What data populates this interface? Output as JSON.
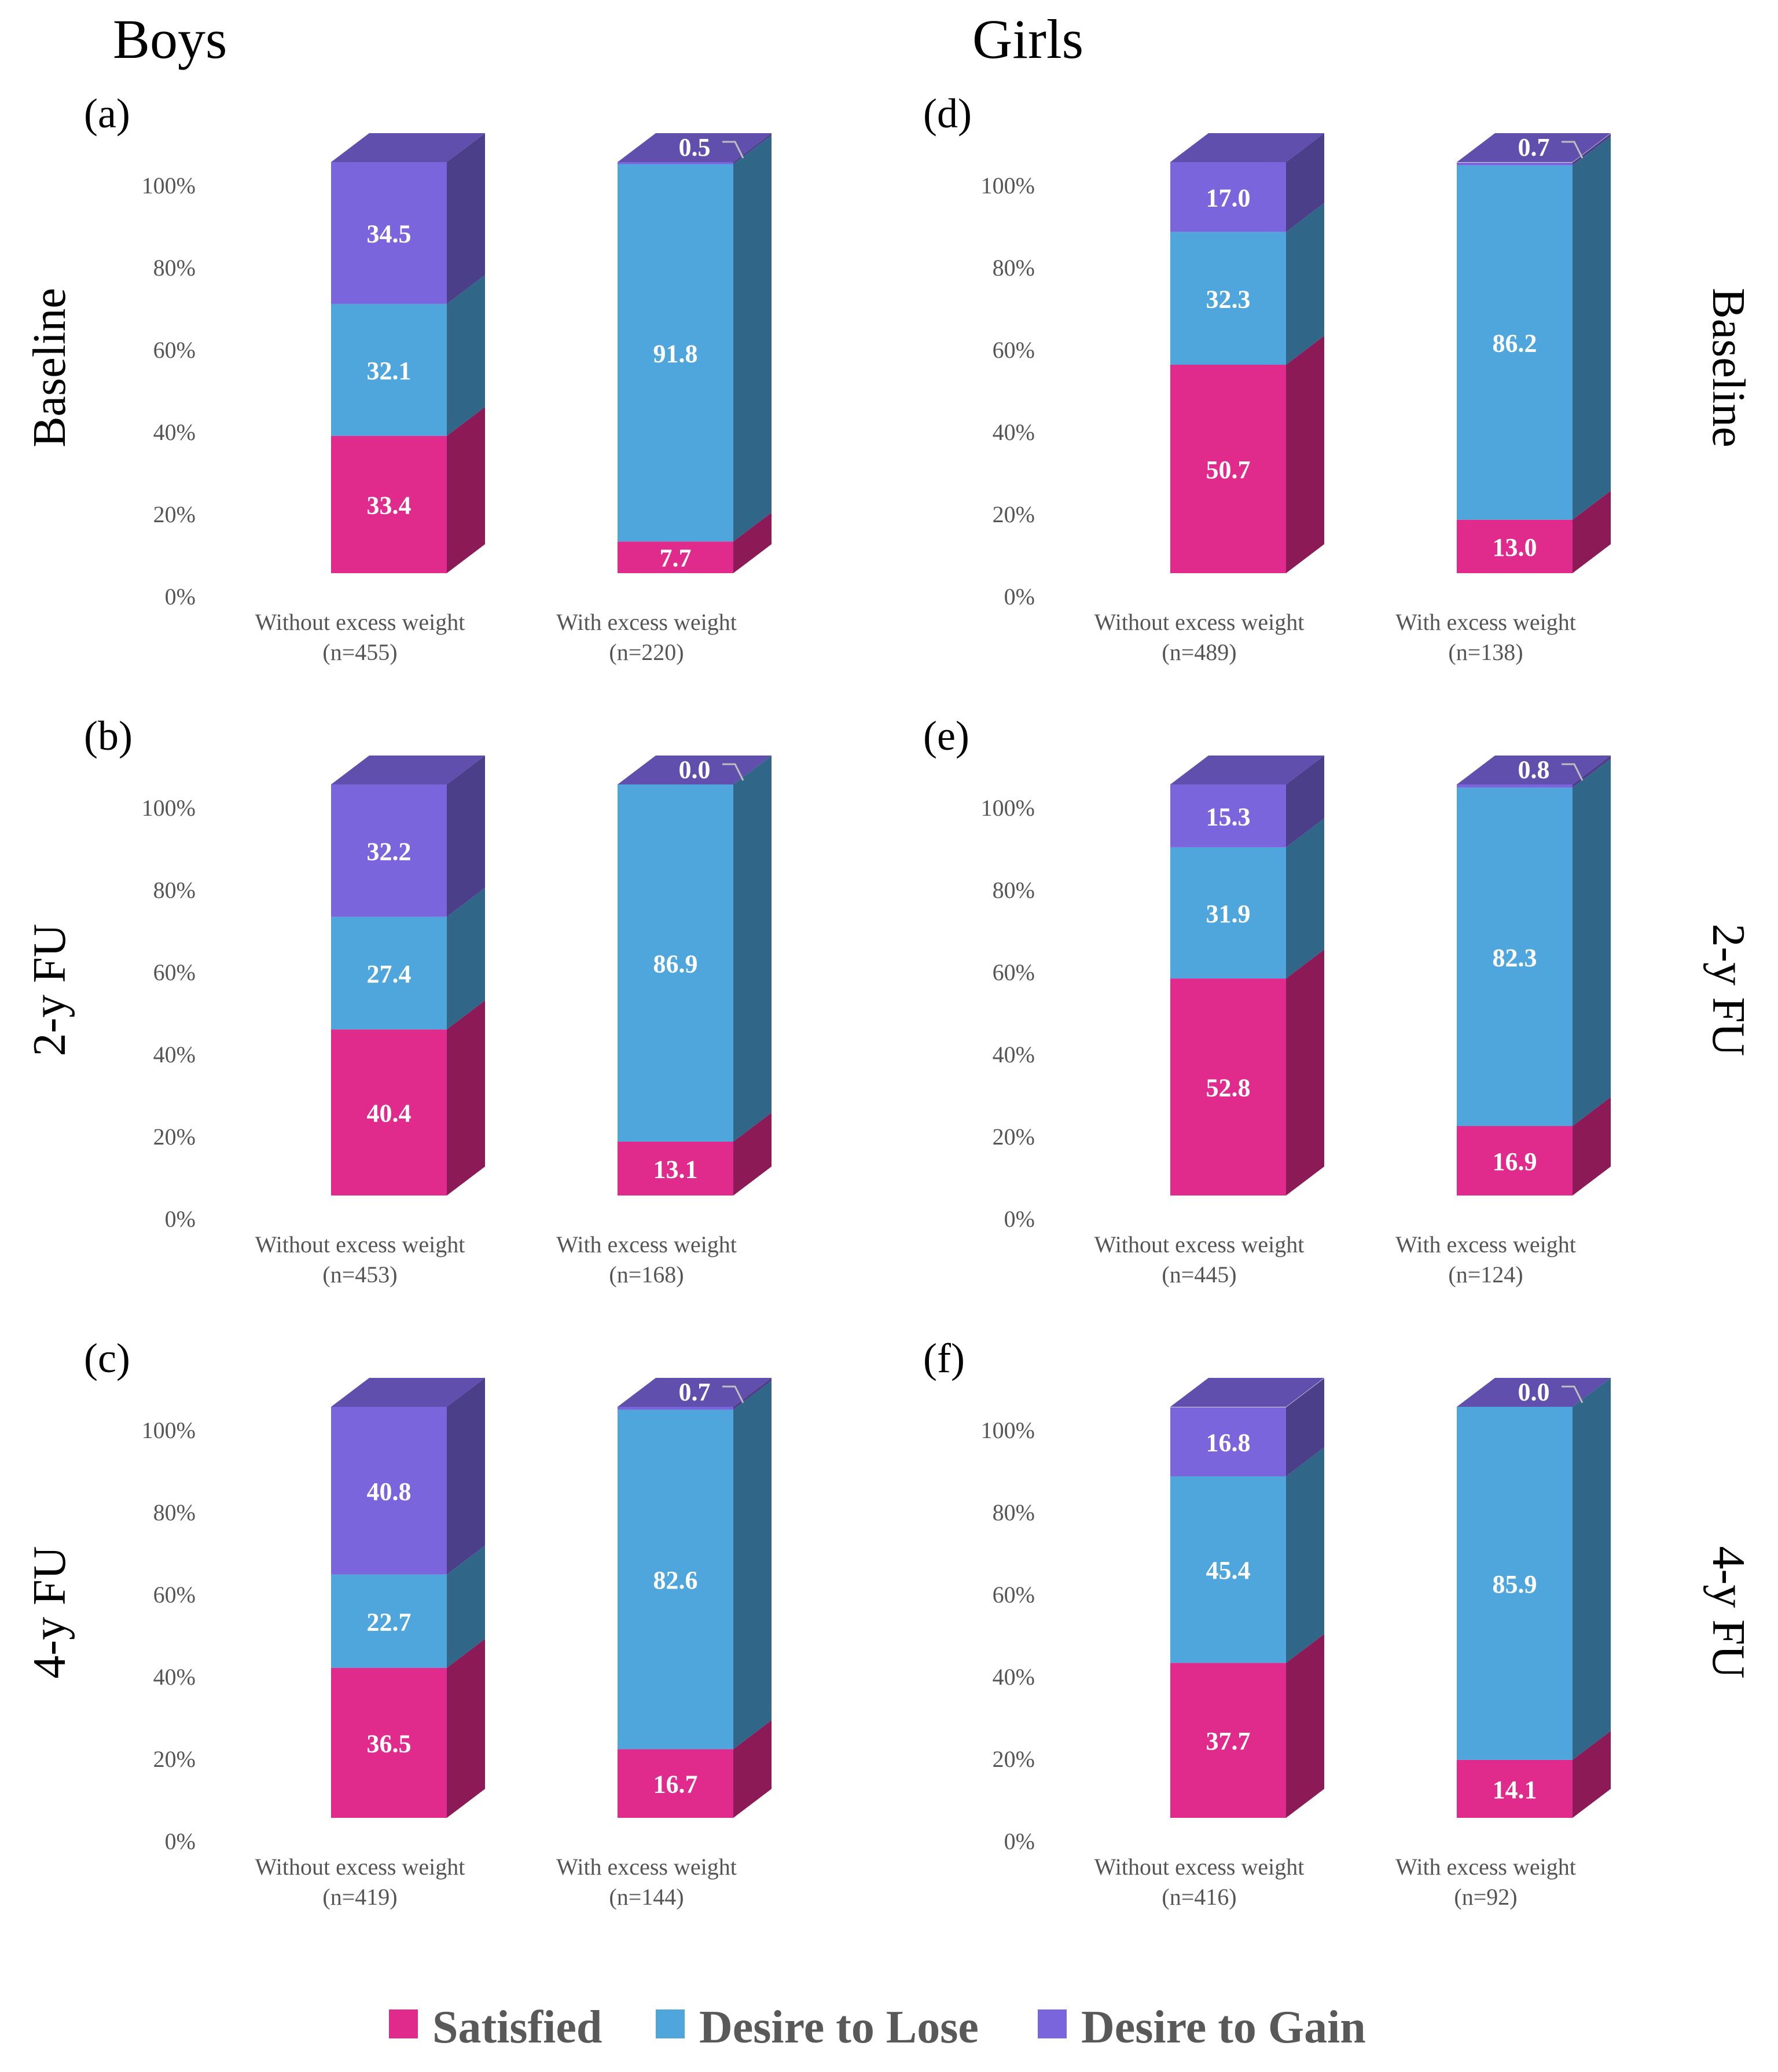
{
  "chart_data": {
    "type": "bar",
    "stacked": true,
    "three_d": true,
    "y_unit": "percent",
    "ylim": [
      0,
      100
    ],
    "yticks": [
      "0%",
      "20%",
      "40%",
      "60%",
      "80%",
      "100%"
    ],
    "column_titles": [
      "Boys",
      "Girls"
    ],
    "row_labels": [
      "Baseline",
      "2-y FU",
      "4-y FU"
    ],
    "series_names": [
      "Satisfied",
      "Desire to Lose",
      "Desire to Gain"
    ],
    "colors": {
      "Satisfied": "#e02a8c",
      "Desire to Lose": "#4ea6dc",
      "Desire to Gain": "#7b65dd"
    },
    "legend_position": "bottom",
    "panels": [
      {
        "label": "(a)",
        "group": "Boys",
        "time": "Baseline",
        "categories": [
          {
            "name": "Without excess weight",
            "n": "(n=455)",
            "values": {
              "Satisfied": 33.4,
              "Desire to Lose": 32.1,
              "Desire to Gain": 34.5
            }
          },
          {
            "name": "With excess weight",
            "n": "(n=220)",
            "values": {
              "Satisfied": 7.7,
              "Desire to Lose": 91.8,
              "Desire to Gain": 0.5
            }
          }
        ]
      },
      {
        "label": "(b)",
        "group": "Boys",
        "time": "2-y FU",
        "categories": [
          {
            "name": "Without excess weight",
            "n": "(n=453)",
            "values": {
              "Satisfied": 40.4,
              "Desire to Lose": 27.4,
              "Desire to Gain": 32.2
            }
          },
          {
            "name": "With excess weight",
            "n": "(n=168)",
            "values": {
              "Satisfied": 13.1,
              "Desire to Lose": 86.9,
              "Desire to Gain": 0.0
            }
          }
        ]
      },
      {
        "label": "(c)",
        "group": "Boys",
        "time": "4-y FU",
        "categories": [
          {
            "name": "Without excess weight",
            "n": "(n=419)",
            "values": {
              "Satisfied": 36.5,
              "Desire to Lose": 22.7,
              "Desire to Gain": 40.8
            }
          },
          {
            "name": "With excess weight",
            "n": "(n=144)",
            "values": {
              "Satisfied": 16.7,
              "Desire to Lose": 82.6,
              "Desire to Gain": 0.7
            }
          }
        ]
      },
      {
        "label": "(d)",
        "group": "Girls",
        "time": "Baseline",
        "categories": [
          {
            "name": "Without excess weight",
            "n": "(n=489)",
            "values": {
              "Satisfied": 50.7,
              "Desire to Lose": 32.3,
              "Desire to Gain": 17.0
            }
          },
          {
            "name": "With excess weight",
            "n": "(n=138)",
            "values": {
              "Satisfied": 13.0,
              "Desire to Lose": 86.2,
              "Desire to Gain": 0.7
            }
          }
        ]
      },
      {
        "label": "(e)",
        "group": "Girls",
        "time": "2-y FU",
        "categories": [
          {
            "name": "Without excess weight",
            "n": "(n=445)",
            "values": {
              "Satisfied": 52.8,
              "Desire to Lose": 31.9,
              "Desire to Gain": 15.3
            }
          },
          {
            "name": "With excess weight",
            "n": "(n=124)",
            "values": {
              "Satisfied": 16.9,
              "Desire to Lose": 82.3,
              "Desire to Gain": 0.8
            }
          }
        ]
      },
      {
        "label": "(f)",
        "group": "Girls",
        "time": "4-y FU",
        "categories": [
          {
            "name": "Without excess weight",
            "n": "(n=416)",
            "values": {
              "Satisfied": 37.7,
              "Desire to Lose": 45.4,
              "Desire to Gain": 16.8
            }
          },
          {
            "name": "With excess weight",
            "n": "(n=92)",
            "values": {
              "Satisfied": 14.1,
              "Desire to Lose": 85.9,
              "Desire to Gain": 0.0
            }
          }
        ]
      }
    ]
  }
}
